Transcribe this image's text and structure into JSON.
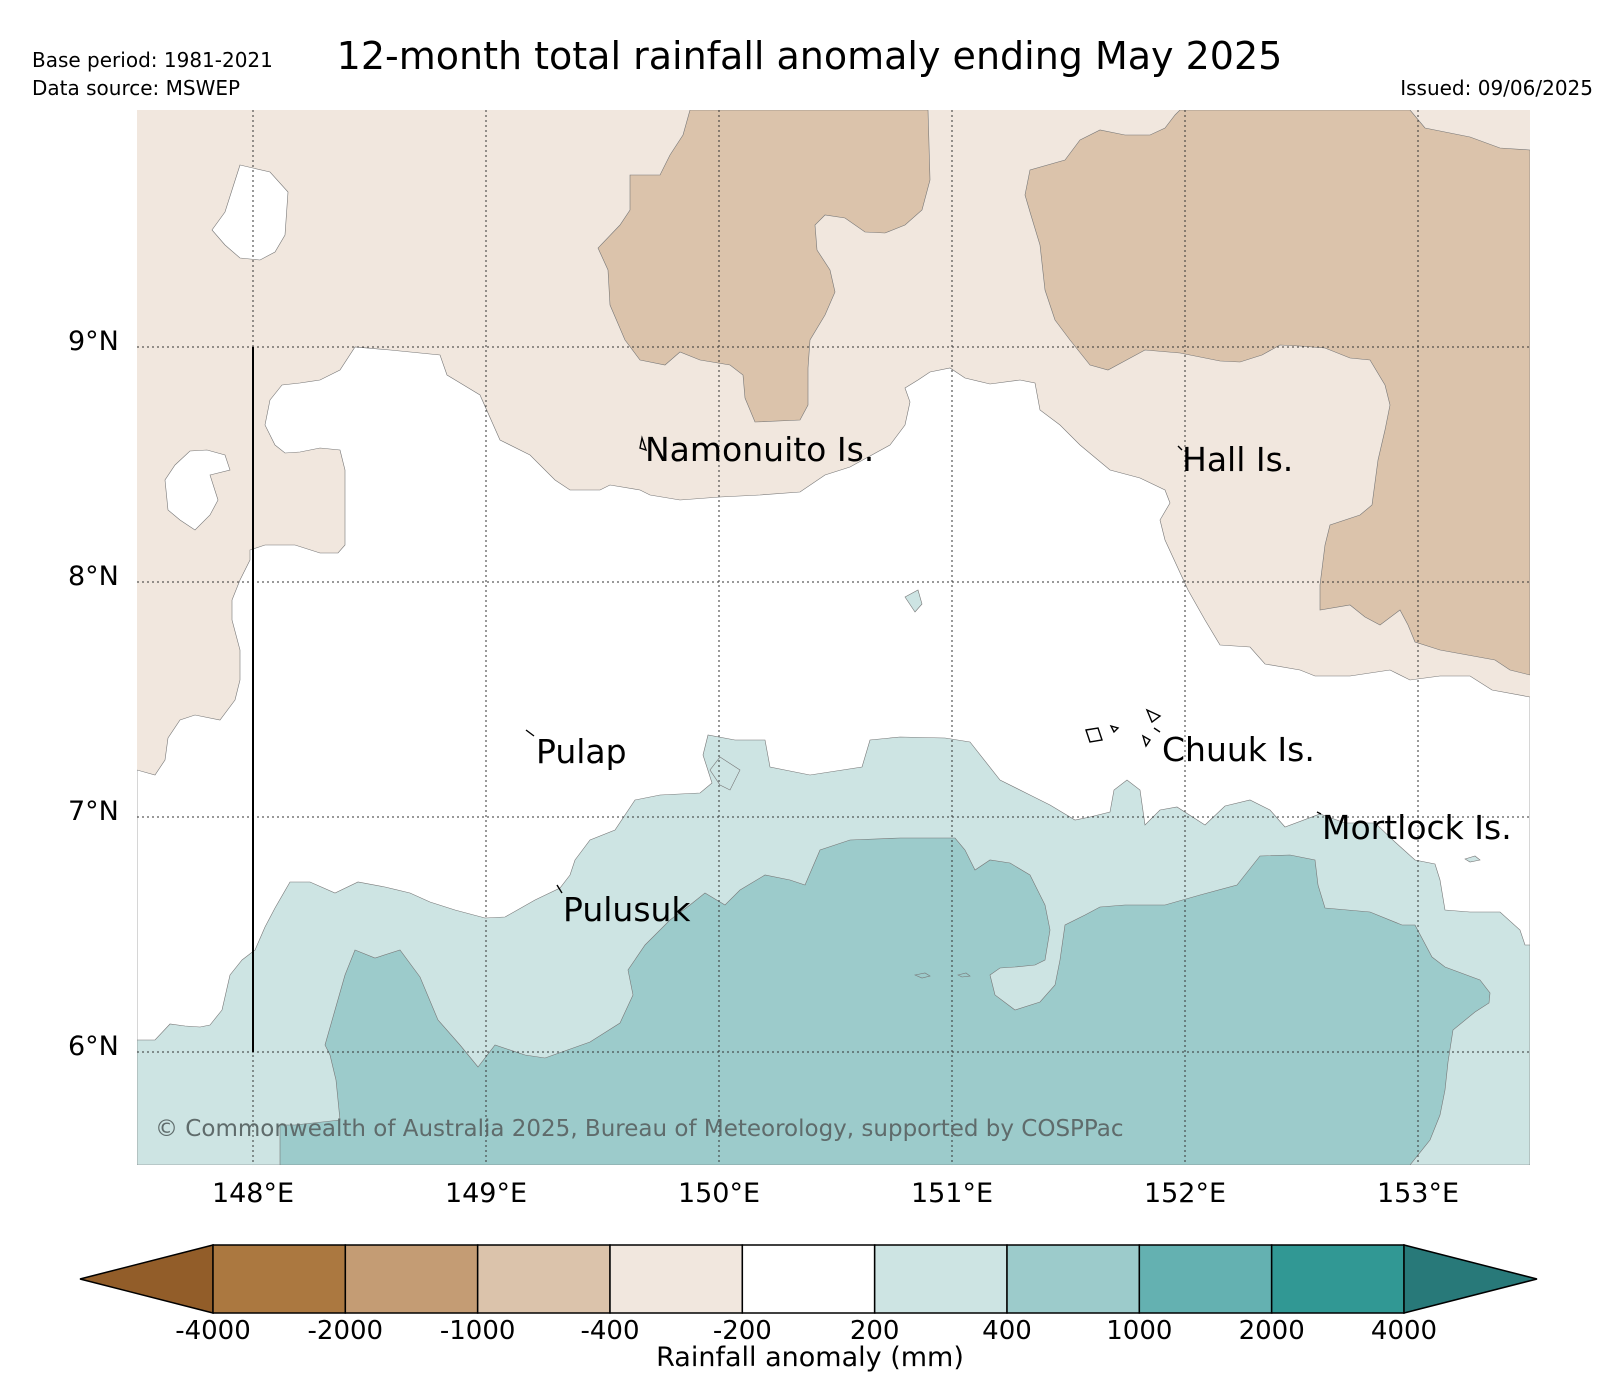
{
  "header": {
    "title": "12-month total rainfall anomaly ending May 2025",
    "base_period": "Base period: 1981-2021",
    "data_source": "Data source: MSWEP",
    "issued": "Issued: 09/06/2025"
  },
  "map": {
    "lat_labels": [
      "9°N",
      "8°N",
      "7°N",
      "6°N"
    ],
    "lon_labels": [
      "148°E",
      "149°E",
      "150°E",
      "151°E",
      "152°E",
      "153°E"
    ],
    "places": [
      {
        "id": "namonuito",
        "name": "Namonuito Is."
      },
      {
        "id": "hall",
        "name": "Hall Is."
      },
      {
        "id": "pulap",
        "name": "Pulap"
      },
      {
        "id": "chuuk",
        "name": "Chuuk Is."
      },
      {
        "id": "mortlock",
        "name": "Mortlock Is."
      },
      {
        "id": "pulusuk",
        "name": "Pulusuk"
      }
    ],
    "copyright": "© Commonwealth of Australia 2025, Bureau of Meteorology, supported by COSPPac"
  },
  "colorbar": {
    "title": "Rainfall anomaly (mm)",
    "ticks": [
      "-4000",
      "-2000",
      "-1000",
      "-400",
      "-200",
      "200",
      "400",
      "1000",
      "2000",
      "4000"
    ],
    "colors": [
      "#ab7840",
      "#c49c74",
      "#dbc3ab",
      "#f1e7de",
      "#ffffff",
      "#cde4e3",
      "#9ccbcb",
      "#64b1b1",
      "#319894"
    ],
    "under_color": "#925d29",
    "over_color": "#287979"
  },
  "styles": {
    "dry_light": "#f1e7de",
    "dry_mid": "#dbc3ab",
    "wet_light": "#cde4e3",
    "wet_mid": "#9ccbcb"
  }
}
